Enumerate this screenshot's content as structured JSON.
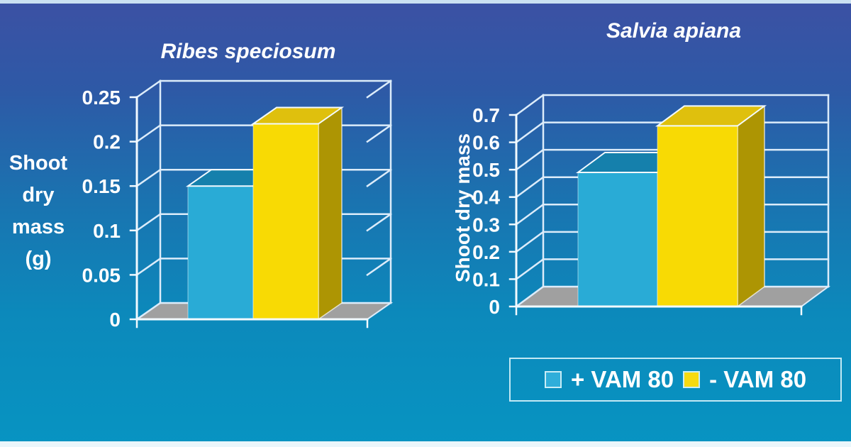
{
  "chart_data": [
    {
      "id": "ribes",
      "type": "bar",
      "variant": "3d-column",
      "title": "Ribes speciosum",
      "ylabel": "Shoot dry mass (g)",
      "ylabel_lines": [
        "Shoot",
        "dry",
        "mass",
        "(g)"
      ],
      "ylim": [
        0,
        0.25
      ],
      "ticks": [
        "0",
        "0.05",
        "0.1",
        "0.15",
        "0.2",
        "0.25"
      ],
      "grid": true,
      "legend_position": "bottom-right",
      "series": [
        {
          "name": "+ VAM 80",
          "value": 0.15
        },
        {
          "name": "- VAM 80",
          "value": 0.22
        }
      ]
    },
    {
      "id": "salvia",
      "type": "bar",
      "variant": "3d-column",
      "title": "Salvia apiana",
      "ylabel": "Shoot dry mass",
      "ylim": [
        0,
        0.7
      ],
      "ticks": [
        "0",
        "0.1",
        "0.2",
        "0.3",
        "0.4",
        "0.5",
        "0.6",
        "0.7"
      ],
      "grid": true,
      "legend_position": "bottom-right",
      "series": [
        {
          "name": "+ VAM 80",
          "value": 0.49
        },
        {
          "name": "- VAM 80",
          "value": 0.66
        }
      ]
    }
  ],
  "legend": {
    "items": [
      {
        "label": "+ VAM 80",
        "color": "#2FAEDA"
      },
      {
        "label": "- VAM 80",
        "color": "#F6DA11"
      }
    ]
  },
  "colors": {
    "background_top": "#3C51A4",
    "background_bottom": "#0794C2",
    "text": "#FFFFFF",
    "grid": "#DCECFA",
    "axis": "#F2FAFF",
    "floor": "#A0A0A0",
    "bar1_front": "#29ABD6",
    "bar1_top": "#1580AC",
    "bar1_side": "#1D8FB5",
    "bar2_front": "#F8DA04",
    "bar2_top": "#DFC00D",
    "bar2_side": "#AD9503"
  }
}
